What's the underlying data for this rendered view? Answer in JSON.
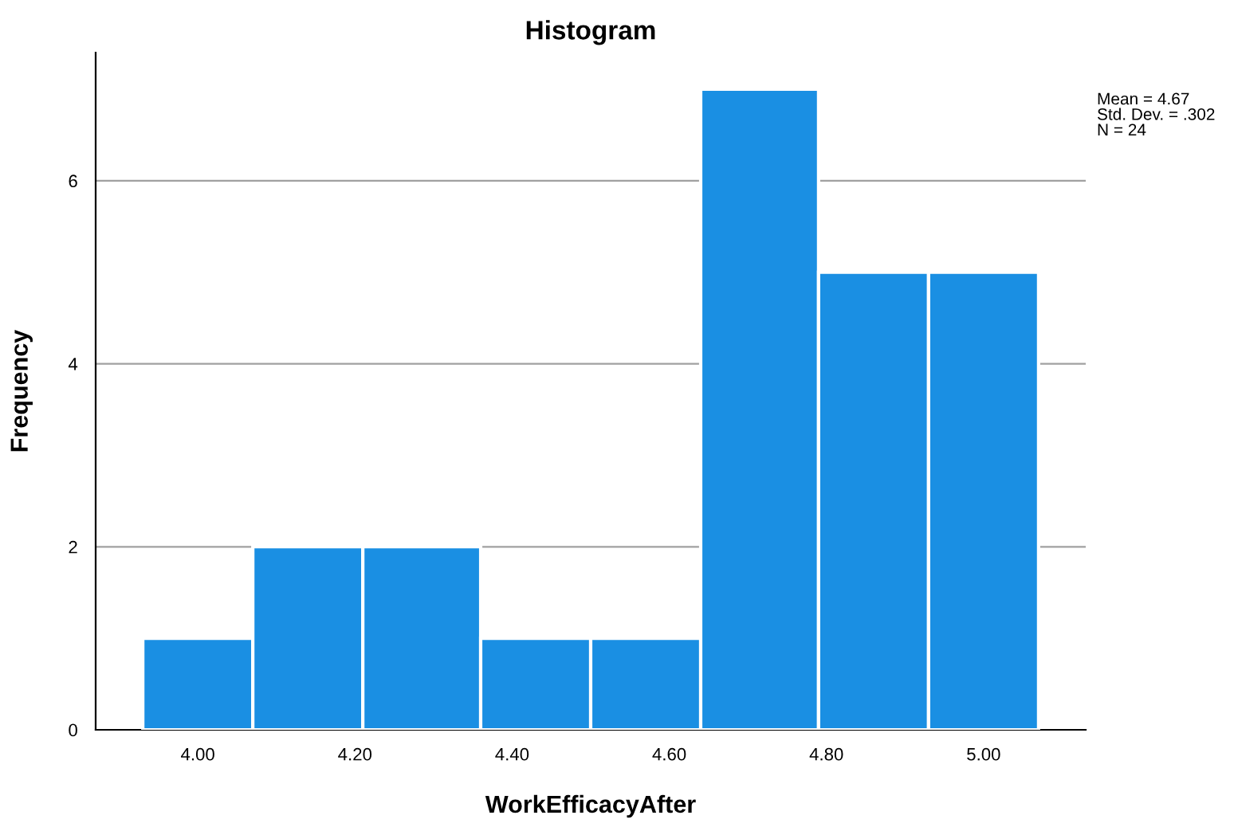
{
  "chart_data": {
    "type": "histogram",
    "title": "Histogram",
    "xlabel": "WorkEfficacyAfter",
    "ylabel": "Frequency",
    "bins": [
      3.93,
      4.07,
      4.21,
      4.36,
      4.5,
      4.64,
      4.79,
      4.93,
      5.07
    ],
    "values": [
      1,
      2,
      2,
      1,
      1,
      7,
      5,
      5
    ],
    "color": "#1a8fe3",
    "xlim": [
      3.87,
      5.13
    ],
    "ylim": [
      0,
      7.4
    ],
    "xticks": [
      {
        "value": 4.0,
        "label": "4.00"
      },
      {
        "value": 4.2,
        "label": "4.20"
      },
      {
        "value": 4.4,
        "label": "4.40"
      },
      {
        "value": 4.6,
        "label": "4.60"
      },
      {
        "value": 4.8,
        "label": "4.80"
      },
      {
        "value": 5.0,
        "label": "5.00"
      }
    ],
    "yticks": [
      0,
      2,
      4,
      6
    ],
    "grid": "y",
    "annotations": [
      "Mean = 4.67\nStd. Dev. = .302\nN = 24"
    ]
  }
}
